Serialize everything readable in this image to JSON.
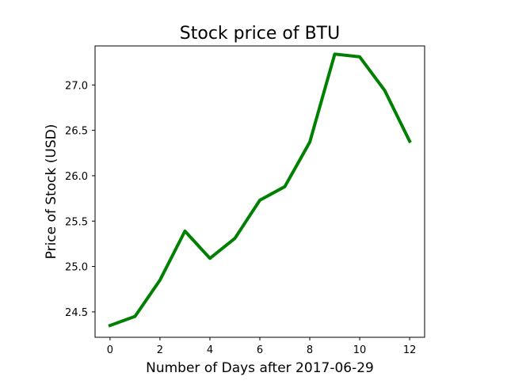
{
  "chart_data": {
    "type": "line",
    "title": "Stock price of BTU",
    "xlabel": "Number of Days after 2017-06-29",
    "ylabel": "Price of Stock (USD)",
    "xlim": [
      -0.6,
      12.6
    ],
    "ylim": [
      24.22,
      27.43
    ],
    "xticks": [
      0,
      2,
      4,
      6,
      8,
      10,
      12
    ],
    "xtick_labels": [
      "0",
      "2",
      "4",
      "6",
      "8",
      "10",
      "12"
    ],
    "yticks": [
      24.5,
      25.0,
      25.5,
      26.0,
      26.5,
      27.0
    ],
    "ytick_labels": [
      "24.5",
      "25.0",
      "25.5",
      "26.0",
      "26.5",
      "27.0"
    ],
    "grid": false,
    "legend": "none",
    "series": [
      {
        "color": "#008000",
        "x": [
          0,
          1,
          2,
          3,
          4,
          5,
          6,
          7,
          8,
          9,
          10,
          11,
          12
        ],
        "y": [
          24.35,
          24.45,
          24.85,
          25.39,
          25.09,
          25.31,
          25.73,
          25.88,
          26.37,
          27.34,
          27.31,
          26.94,
          26.38
        ]
      }
    ]
  }
}
